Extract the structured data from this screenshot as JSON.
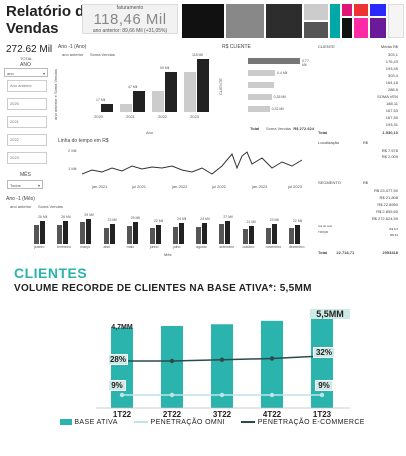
{
  "dashboard": {
    "title_line1": "Relatório de",
    "title_line2": "Vendas",
    "kpi": {
      "caption": "faturamento",
      "value": "118,46 Mil",
      "sub": "ano anterior: 89,66 Mil (+31,05%)"
    },
    "total_value": "272.62 Mil",
    "total_caption": "TOTAL",
    "ano_label": "ANO",
    "ano_select": "ano",
    "mes_label": "MÊS",
    "mes_select": "Todos",
    "slicer_buttons": [
      "Ano anterior",
      "2020",
      "2021",
      "2022",
      "2023"
    ],
    "bar_chart": {
      "title": "Ano -1 (Ano)",
      "legend": [
        "ano anterior",
        "Soma Vendas"
      ],
      "ylabel": "ano anterior e Soma Vendas",
      "xlabel": "Ano",
      "categories": [
        "2020",
        "2021",
        "2022",
        "2023"
      ],
      "series": [
        {
          "name": "ano anterior",
          "values": [
            0,
            17,
            47,
            90
          ]
        },
        {
          "name": "Soma Vendas",
          "values": [
            17,
            47,
            90,
            118
          ]
        }
      ],
      "labels": [
        "17 Mil",
        "47 Mil",
        "90 Mil",
        "118 Mil"
      ]
    },
    "clients_chart": {
      "title": "R$ CLIENTE",
      "ylabel": "CLIENTE",
      "xlabel": "Soma Vendas",
      "values": [
        0.77,
        0.4,
        0.38,
        0.35,
        0.32
      ],
      "labels": [
        "0,77 Mil",
        "0,4 Mil",
        "",
        "0,35 Mil",
        "0,32 Mil"
      ]
    },
    "line_chart": {
      "title": "Linha do tempo em R$",
      "xticks": [
        "jan 2021",
        "jul 2021",
        "jan 2022",
        "jul 2022",
        "jan 2023",
        "jul 2023"
      ],
      "ylabel": "Soma Vendas",
      "yticks": [
        "2 Mil",
        "1 Mil"
      ]
    },
    "monthly_chart": {
      "title": "Ano -1 (Mês)",
      "legend": [
        "ano anterior",
        "Soma Vendas"
      ],
      "xlabel": "Mês",
      "categories": [
        "janeiro",
        "fevereiro",
        "março",
        "abril",
        "maio",
        "junho",
        "julho",
        "agosto",
        "setembro",
        "outubro",
        "novembro",
        "dezembro"
      ],
      "labels": [
        "26 Mil",
        "26 Mil",
        "29 Mil",
        "23 Mil",
        "25 Mil",
        "22 Mil",
        "24 Mil",
        "24 Mil",
        "27 Mil",
        "21 Mil",
        "23 Mil",
        "22 Mil"
      ]
    },
    "right_table": {
      "headers": [
        "CLIENTE",
        "Média R$"
      ],
      "values": [
        "303,1",
        "176,43",
        "193,45",
        "303,4",
        "164,18",
        "288,9",
        "SOMA VEN",
        "188,11",
        "167,53",
        "167,50",
        "193,31"
      ],
      "total_label": "Total",
      "total_value": "1.530,10"
    },
    "mid_table": {
      "values": [
        "1.000,00",
        "R$ 272.624"
      ],
      "total_label": "Total",
      "total_value": "R$ 272.624"
    },
    "loc_table": {
      "headers": [
        "Localização",
        "R$"
      ],
      "values": [
        "R$ 7.578",
        "R$ 2.009"
      ]
    },
    "seg_table": {
      "headers": [
        "SEGMENTO",
        "R$"
      ],
      "values": [
        "R$ 23.477,50",
        "R$ 21.808",
        "R$ 22.8950",
        "R$ 2.855,60",
        "R$ 272.624,59"
      ],
      "extra": [
        "rca do ano",
        "R$ 6,6",
        "TRI/QR",
        "R$ 54"
      ],
      "total_label": "Total",
      "total_value": "22.718,71",
      "total_value2": "2953418"
    }
  },
  "clients": {
    "title": "CLIENTES",
    "subtitle": "VOLUME RECORDE DE  CLIENTES NA BASE ATIVA*: 5,5MM",
    "first_value_label": "4,7MM",
    "last_value_label": "5,5MM",
    "omni_first": "9%",
    "omni_last": "9%",
    "ecom_first": "28%",
    "ecom_last": "32%",
    "legend": {
      "base": "BASE ATIVA",
      "omni": "PENETRAÇÃO OMNI",
      "ecom": "PENETRAÇÃO E-COMMERCE"
    }
  },
  "chart_data": {
    "type": "bar",
    "categories": [
      "1T22",
      "2T22",
      "3T22",
      "4T22",
      "1T23"
    ],
    "series": [
      {
        "name": "BASE ATIVA",
        "values": [
          4.7,
          4.8,
          4.9,
          5.1,
          5.5
        ]
      },
      {
        "name": "PENETRAÇÃO OMNI",
        "values": [
          9,
          9,
          9,
          9,
          9
        ]
      },
      {
        "name": "PENETRAÇÃO E-COMMERCE",
        "values": [
          28,
          28,
          29,
          30,
          32
        ]
      }
    ],
    "colors": {
      "base": "#2bb3ad",
      "omni": "#bfe3ea",
      "ecom": "#2d4a4a"
    }
  }
}
